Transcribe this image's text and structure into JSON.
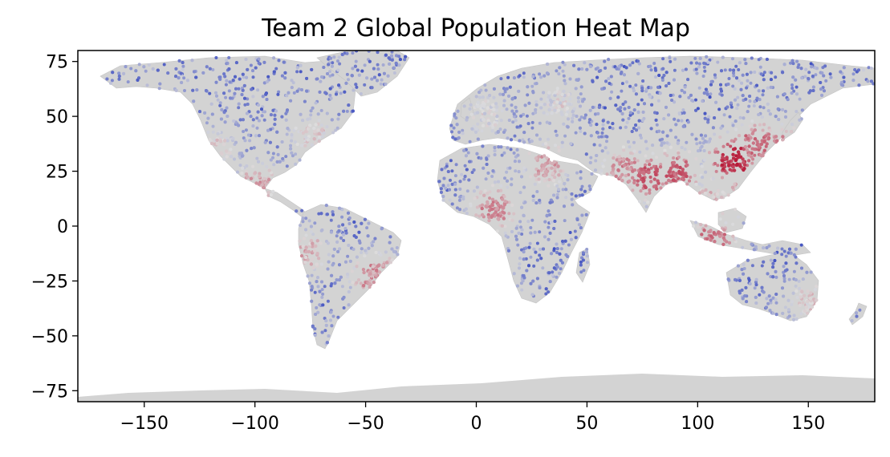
{
  "chart_data": {
    "type": "scatter",
    "title": "Team 2 Global Population Heat Map",
    "xlabel": "",
    "ylabel": "",
    "xlim": [
      -180,
      180
    ],
    "ylim": [
      -80,
      80
    ],
    "x_ticks": [
      -150,
      -100,
      -50,
      0,
      50,
      100,
      150
    ],
    "x_tick_labels": [
      "−150",
      "−100",
      "−50",
      "0",
      "50",
      "100",
      "150"
    ],
    "y_ticks": [
      75,
      50,
      25,
      0,
      -25,
      -50,
      -75
    ],
    "y_tick_labels": [
      "75",
      "50",
      "25",
      "0",
      "−25",
      "−50",
      "−75"
    ],
    "grid": false,
    "legend": "none",
    "colormap": "coolwarm",
    "colors": {
      "land": "#d3d3d3",
      "low": "#3b4cc0",
      "mid": "#dddddd",
      "high": "#b40426",
      "frame": "#000000"
    },
    "hotspots": [
      {
        "lon": 116,
        "lat": 30,
        "level": 0.95
      },
      {
        "lon": 78,
        "lat": 22,
        "level": 0.85
      },
      {
        "lon": 90,
        "lat": 24,
        "level": 0.85
      },
      {
        "lon": 107,
        "lat": -7,
        "level": 0.8
      },
      {
        "lon": 140,
        "lat": 36,
        "level": 0.75
      },
      {
        "lon": 8,
        "lat": 8,
        "level": 0.75
      },
      {
        "lon": 32,
        "lat": 28,
        "level": 0.7
      },
      {
        "lon": -46,
        "lat": -23,
        "level": 0.75
      },
      {
        "lon": -99,
        "lat": 19,
        "level": 0.7
      },
      {
        "lon": -74,
        "lat": 41,
        "level": 0.6
      },
      {
        "lon": -118,
        "lat": 34,
        "level": 0.6
      },
      {
        "lon": -43,
        "lat": -22,
        "level": 0.7
      },
      {
        "lon": 151,
        "lat": -34,
        "level": 0.6
      },
      {
        "lon": 37,
        "lat": 56,
        "level": 0.55
      },
      {
        "lon": 121,
        "lat": 14,
        "level": 0.7
      },
      {
        "lon": 127,
        "lat": 37,
        "level": 0.8
      },
      {
        "lon": 106,
        "lat": 11,
        "level": 0.65
      },
      {
        "lon": 67,
        "lat": 25,
        "level": 0.75
      },
      {
        "lon": 4,
        "lat": 51,
        "level": 0.55
      },
      {
        "lon": -77,
        "lat": -12,
        "level": 0.65
      }
    ]
  }
}
